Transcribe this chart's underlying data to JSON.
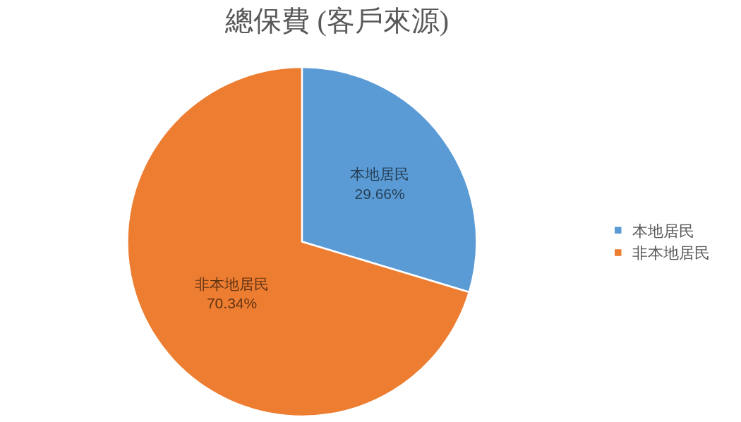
{
  "chart_data": {
    "type": "pie",
    "title": "總保費 (客戶來源)",
    "categories": [
      "本地居民",
      "非本地居民"
    ],
    "values": [
      29.66,
      70.34
    ],
    "value_labels": [
      "29.66%",
      "70.34%"
    ],
    "colors": [
      "#5b9bd5",
      "#ed7d31"
    ],
    "legend": "right"
  }
}
